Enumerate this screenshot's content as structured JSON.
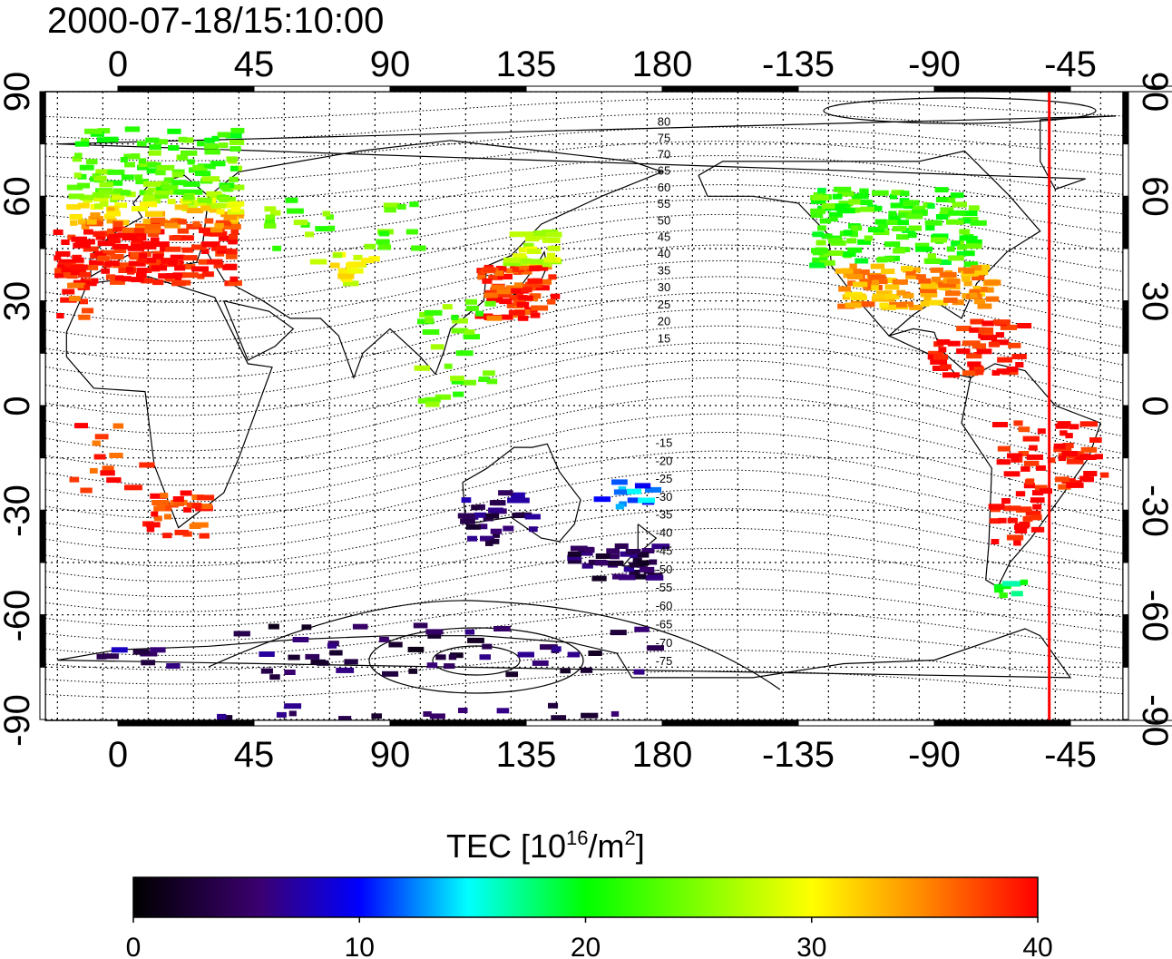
{
  "title": "2000-07-18/15:10:00",
  "map": {
    "lon_ticks": [
      "0",
      "45",
      "90",
      "135",
      "180",
      "-135",
      "-90",
      "-45"
    ],
    "lat_ticks": [
      "90",
      "60",
      "30",
      "0",
      "-30",
      "-60",
      "-90"
    ],
    "geomag_lat_labels": [
      "80",
      "75",
      "70",
      "65",
      "60",
      "55",
      "50",
      "45",
      "40",
      "35",
      "30",
      "25",
      "20",
      "15",
      "-15",
      "-20",
      "-25",
      "-30",
      "-35",
      "-40",
      "-45",
      "-50",
      "-55",
      "-60",
      "-65",
      "-70",
      "-75"
    ],
    "terminator_longitude": -52,
    "terminator_color": "#ff0000"
  },
  "colorbar": {
    "label_main": "TEC  [10",
    "label_exp1": "16",
    "label_mid": "/m",
    "label_exp2": "2",
    "label_end": "]",
    "ticks": [
      "0",
      "10",
      "20",
      "30",
      "40"
    ],
    "range": [
      0,
      40
    ],
    "stops": [
      "#000000",
      "#3b0070",
      "#0000ff",
      "#00ffff",
      "#00ff00",
      "#ffff00",
      "#ff8c00",
      "#ff0000"
    ]
  }
}
